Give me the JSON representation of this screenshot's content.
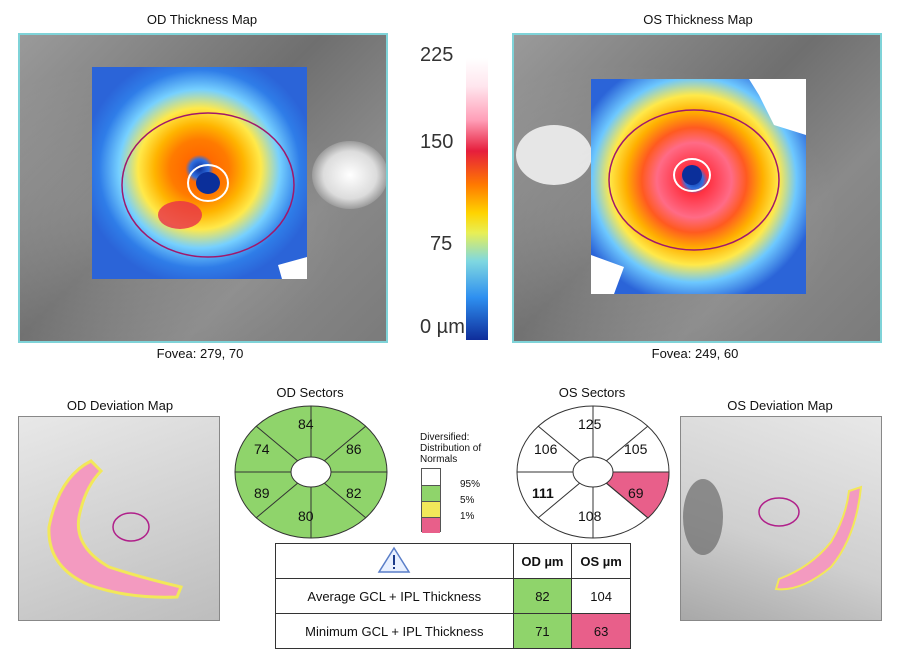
{
  "od_thickness": {
    "title": "OD Thickness Map",
    "fovea": "Fovea: 279, 70"
  },
  "os_thickness": {
    "title": "OS Thickness Map",
    "fovea": "Fovea: 249, 60"
  },
  "scale": {
    "labels": [
      "225",
      "150",
      "75",
      "0 µm"
    ]
  },
  "od_sectors": {
    "title": "OD Sectors",
    "values": [
      "84",
      "86",
      "82",
      "80",
      "89",
      "74"
    ]
  },
  "os_sectors": {
    "title": "OS Sectors",
    "values": [
      "125",
      "105",
      "69",
      "108",
      "111",
      "106"
    ],
    "colors": [
      "white",
      "white",
      "red",
      "white",
      "white",
      "white"
    ]
  },
  "legend": {
    "header": "Diversified: Distribution of Normals",
    "levels": [
      "95%",
      "5%",
      "1%"
    ],
    "colors": [
      "#ffffff",
      "#8fd46b",
      "#f2e85a",
      "#e85f8a"
    ]
  },
  "od_deviation": {
    "title": "OD Deviation Map"
  },
  "os_deviation": {
    "title": "OS Deviation Map"
  },
  "table": {
    "columns": [
      "OD µm",
      "OS µm"
    ],
    "rows": [
      {
        "label": "Average GCL + IPL Thickness",
        "od": "82",
        "os": "104"
      },
      {
        "label": "Minimum GCL + IPL Thickness",
        "od": "71",
        "os": "63"
      }
    ]
  },
  "colors": {
    "frame": "#7fd3d8",
    "normal": "#8fd46b",
    "abnormal": "#e85f8a",
    "border_yellow": "#f2e85a"
  }
}
